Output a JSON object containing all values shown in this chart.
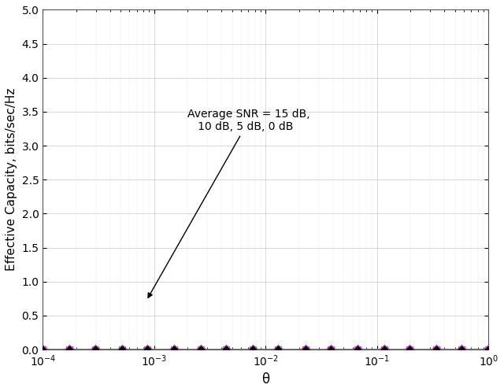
{
  "title": "",
  "xlabel": "θ",
  "ylabel": "Effective Capacity, bits/sec/Hz",
  "xlim": [
    0.0001,
    1.0
  ],
  "ylim": [
    0,
    5
  ],
  "yticks": [
    0,
    0.5,
    1.0,
    1.5,
    2.0,
    2.5,
    3.0,
    3.5,
    4.0,
    4.5,
    5.0
  ],
  "snr_dB": [
    15,
    10,
    5,
    0
  ],
  "colors": [
    "#3333ff",
    "#00cccc",
    "#cc44cc",
    "#ff4444"
  ],
  "annotation_text": "Average SNR = 15 dB,\n   10 dB, 5 dB, 0 dB",
  "marker_colors": [
    "#3333ff",
    "#00cccc",
    "#cc44cc",
    "#ff4444"
  ],
  "marker_types": [
    "D",
    "o",
    "s",
    "*"
  ],
  "n_markers": 18,
  "line_width": 1.2,
  "figsize": [
    6.4,
    4.98
  ],
  "dpi": 100
}
